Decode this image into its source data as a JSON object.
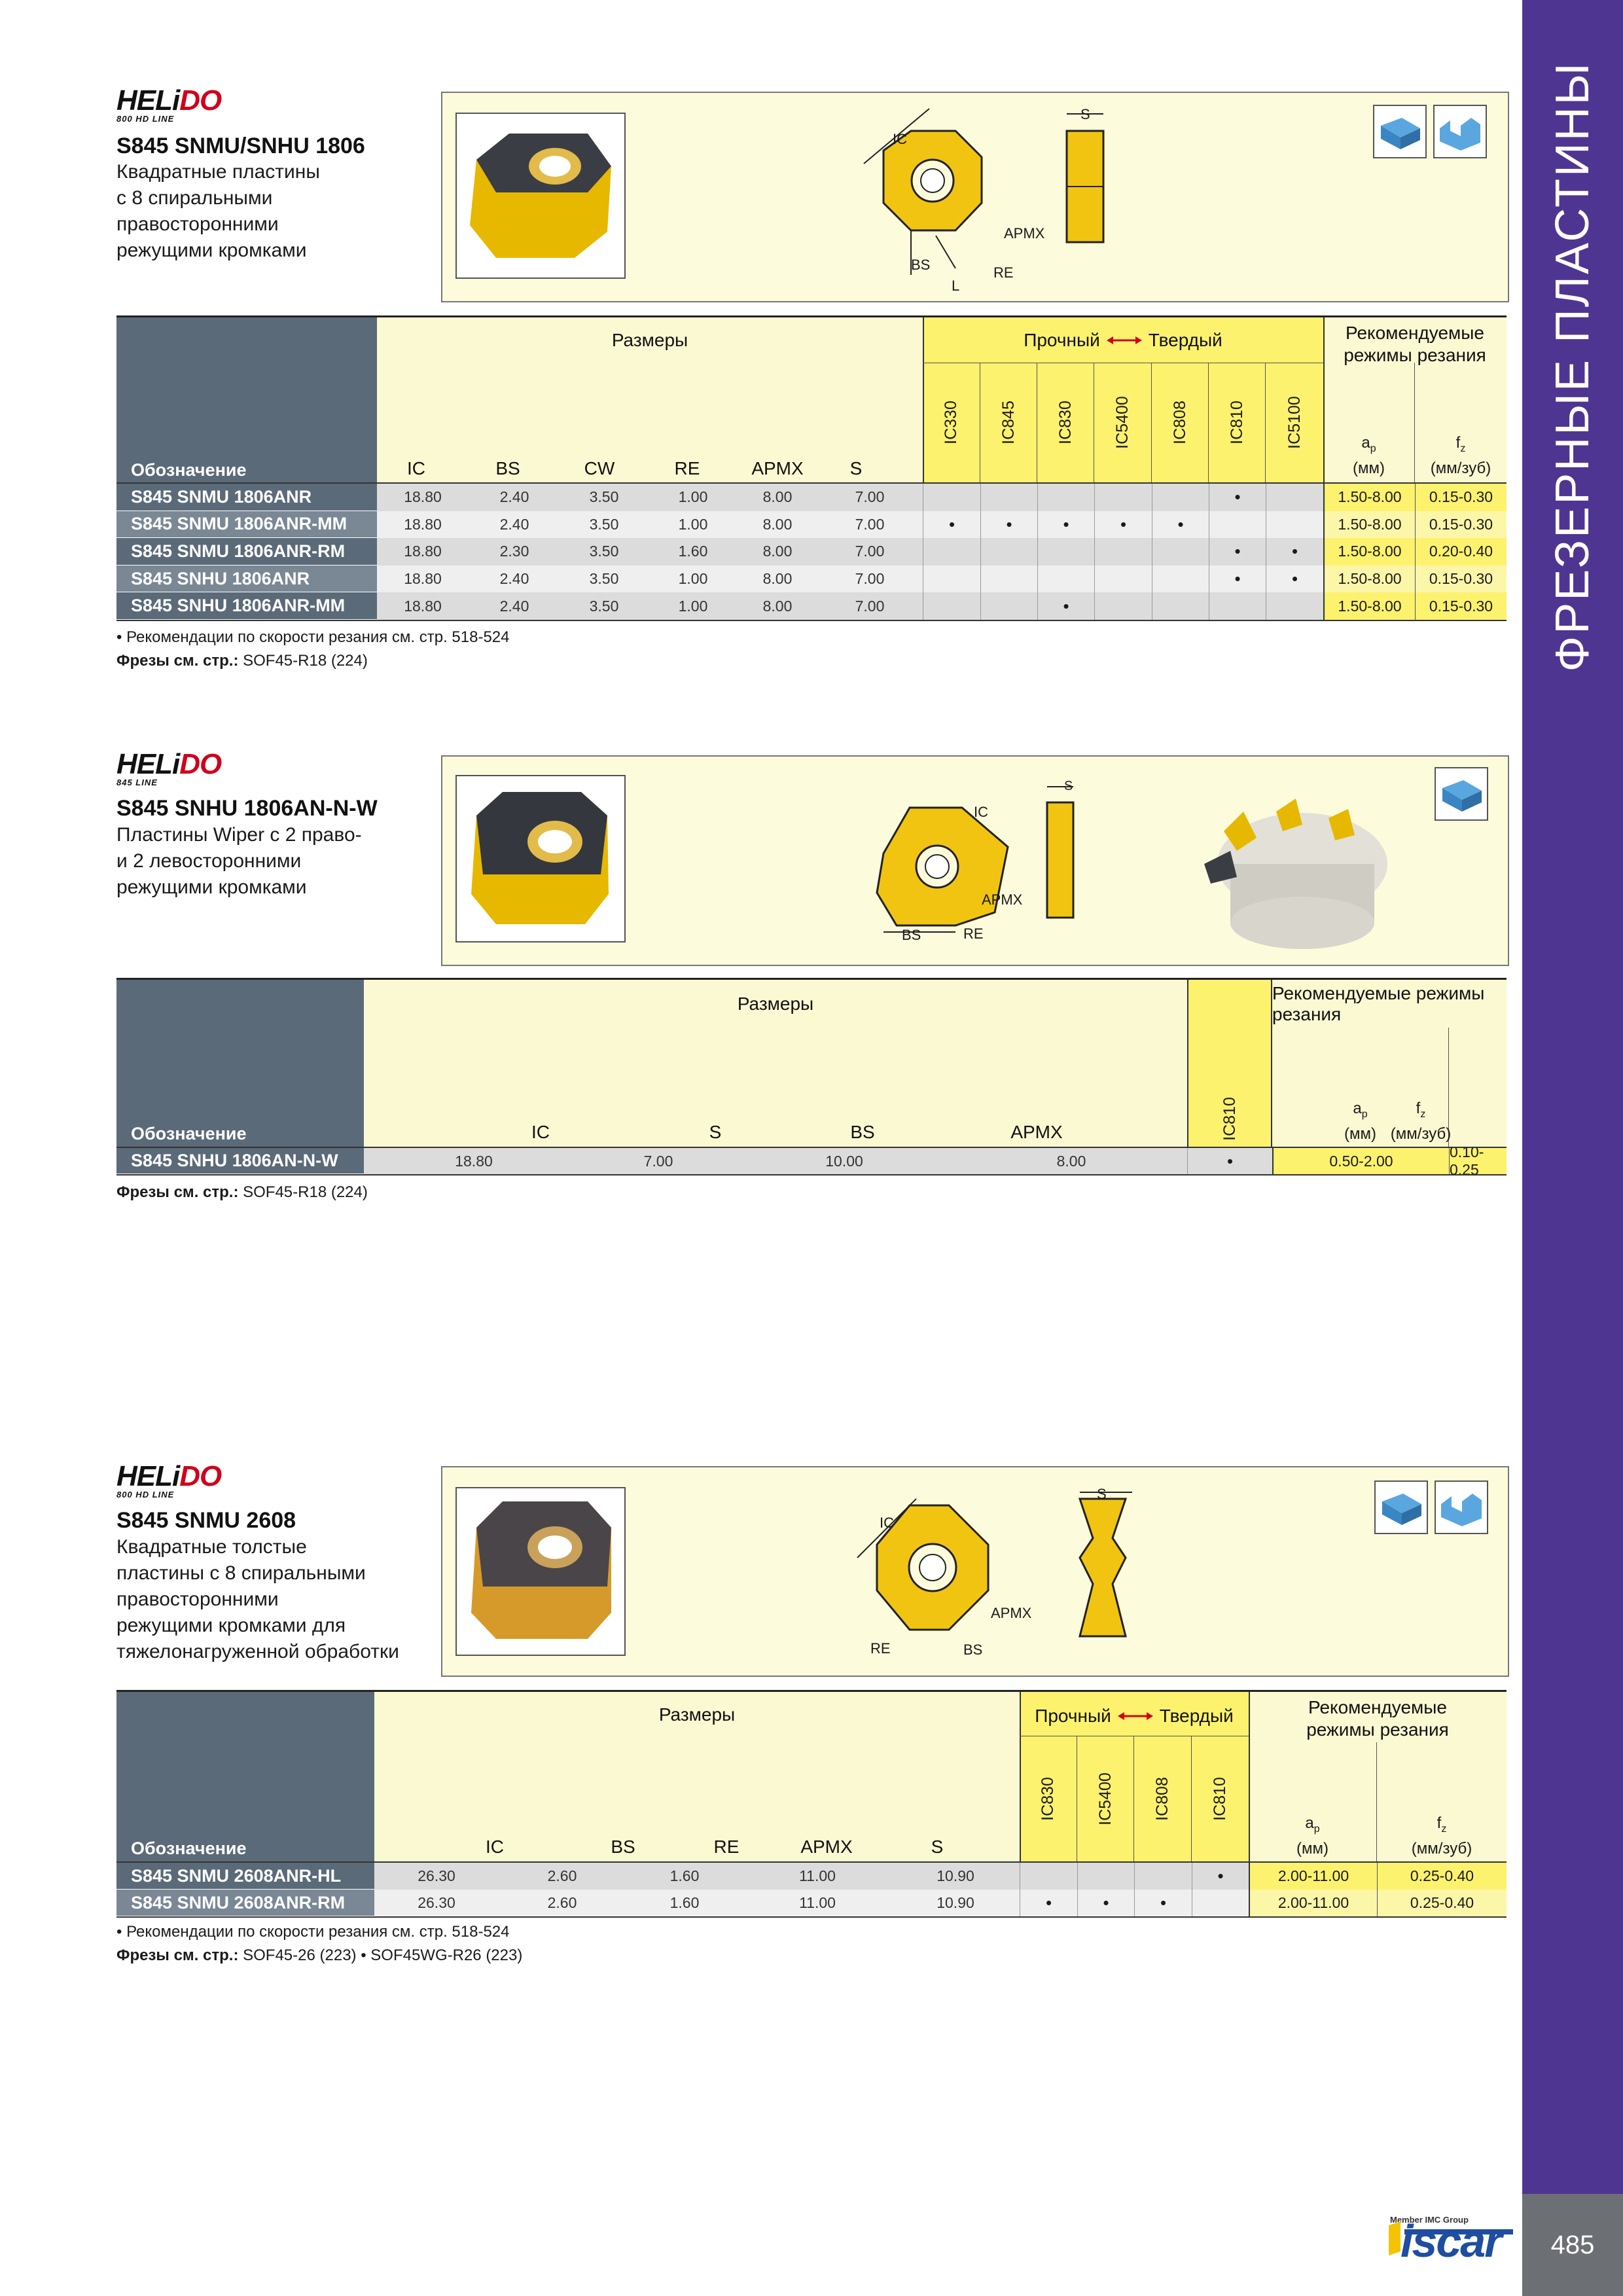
{
  "sidebar": {
    "title": "ФРЕЗЕРНЫЕ ПЛАСТИНЫ",
    "page_number": "485"
  },
  "brand": {
    "iscar": "iscar",
    "member": "Member IMC Group"
  },
  "logos": {
    "helido_black": "HELi",
    "helido_red": "DO",
    "sub_800": "800 HD LINE",
    "sub_845": "845 LINE"
  },
  "colors": {
    "sidebar": "#4f3592",
    "header_dark": "#5b6a78",
    "header_light": "#fbf9d2",
    "header_yellow": "#fdf26d",
    "insert_yellow": "#f2c412"
  },
  "section1": {
    "title": "S845 SNMU/SNHU 1806",
    "desc": [
      "Квадратные пластины",
      "с 8 спиральными",
      "правосторонними",
      "режущими кромками"
    ],
    "diagram_labels": {
      "ic": "IC",
      "s": "S",
      "apmx": "APMX",
      "bs": "BS",
      "re": "RE",
      "l": "L"
    },
    "header": {
      "designation": "Обозначение",
      "sizes": "Размеры",
      "strong": "Прочный",
      "hard": "Твердый",
      "recommended": [
        "Рекомендуемые",
        "режимы резания"
      ]
    },
    "dim_cols": [
      "IC",
      "BS",
      "CW",
      "RE",
      "APMX",
      "S"
    ],
    "grade_cols": [
      "IC330",
      "IC845",
      "IC830",
      "IC5400",
      "IC808",
      "IC810",
      "IC5100"
    ],
    "ap": [
      "a",
      "p",
      "(мм)"
    ],
    "fz": [
      "f",
      "z",
      "(мм/зуб)"
    ],
    "rows": [
      {
        "name": "S845 SNMU 1806ANR",
        "dims": [
          "18.80",
          "2.40",
          "3.50",
          "1.00",
          "8.00",
          "7.00"
        ],
        "grades": [
          "",
          "",
          "",
          "",
          "",
          "•",
          ""
        ],
        "ap": "1.50-8.00",
        "fz": "0.15-0.30"
      },
      {
        "name": "S845 SNMU 1806ANR-MM",
        "dims": [
          "18.80",
          "2.40",
          "3.50",
          "1.00",
          "8.00",
          "7.00"
        ],
        "grades": [
          "•",
          "•",
          "•",
          "•",
          "•",
          "",
          ""
        ],
        "ap": "1.50-8.00",
        "fz": "0.15-0.30"
      },
      {
        "name": "S845 SNMU 1806ANR-RM",
        "dims": [
          "18.80",
          "2.30",
          "3.50",
          "1.60",
          "8.00",
          "7.00"
        ],
        "grades": [
          "",
          "",
          "",
          "",
          "",
          "•",
          "•"
        ],
        "ap": "1.50-8.00",
        "fz": "0.20-0.40"
      },
      {
        "name": "S845 SNHU 1806ANR",
        "dims": [
          "18.80",
          "2.40",
          "3.50",
          "1.00",
          "8.00",
          "7.00"
        ],
        "grades": [
          "",
          "",
          "",
          "",
          "",
          "•",
          "•"
        ],
        "ap": "1.50-8.00",
        "fz": "0.15-0.30"
      },
      {
        "name": "S845 SNHU 1806ANR-MM",
        "dims": [
          "18.80",
          "2.40",
          "3.50",
          "1.00",
          "8.00",
          "7.00"
        ],
        "grades": [
          "",
          "",
          "•",
          "",
          "",
          "",
          ""
        ],
        "ap": "1.50-8.00",
        "fz": "0.15-0.30"
      }
    ],
    "note1": "• Рекомендации по скорости резания см. стр. 518-524",
    "note2_label": "Фрезы см. стр.:",
    "note2_value": " SOF45-R18 (224)"
  },
  "section2": {
    "title": "S845 SNHU 1806AN-N-W",
    "desc": [
      "Пластины Wiper с 2 право-",
      "и 2 левосторонними",
      "режущими кромками"
    ],
    "diagram_labels": {
      "ic": "IC",
      "s": "S",
      "apmx": "APMX",
      "bs": "BS",
      "re": "RE"
    },
    "header": {
      "designation": "Обозначение",
      "sizes": "Размеры",
      "recommended": "Рекомендуемые режимы резания"
    },
    "dim_cols": [
      "IC",
      "S",
      "BS",
      "APMX"
    ],
    "grade_cols": [
      "IC810"
    ],
    "ap": [
      "a",
      "p",
      "(мм)"
    ],
    "fz": [
      "f",
      "z",
      "(мм/зуб)"
    ],
    "rows": [
      {
        "name": "S845 SNHU 1806AN-N-W",
        "dims": [
          "18.80",
          "7.00",
          "10.00",
          "8.00"
        ],
        "grades": [
          "•"
        ],
        "ap": "0.50-2.00",
        "fz": "0.10-0.25"
      }
    ],
    "note2_label": "Фрезы см. стр.:",
    "note2_value": " SOF45-R18 (224)"
  },
  "section3": {
    "title": "S845 SNMU 2608",
    "desc": [
      "Квадратные толстые",
      "пластины с 8 спиральными",
      "правосторонними",
      "режущими кромками для",
      "тяжелонагруженной обработки"
    ],
    "diagram_labels": {
      "ic": "IC",
      "s": "S",
      "apmx": "APMX",
      "bs": "BS",
      "re": "RE"
    },
    "header": {
      "designation": "Обозначение",
      "sizes": "Размеры",
      "strong": "Прочный",
      "hard": "Твердый",
      "recommended": [
        "Рекомендуемые",
        "режимы резания"
      ]
    },
    "dim_cols": [
      "IC",
      "BS",
      "RE",
      "APMX",
      "S"
    ],
    "grade_cols": [
      "IC830",
      "IC5400",
      "IC808",
      "IC810"
    ],
    "ap": [
      "a",
      "p",
      "(мм)"
    ],
    "fz": [
      "f",
      "z",
      "(мм/зуб)"
    ],
    "rows": [
      {
        "name": "S845 SNMU 2608ANR-HL",
        "dims": [
          "26.30",
          "2.60",
          "1.60",
          "11.00",
          "10.90"
        ],
        "grades": [
          "",
          "",
          "",
          "•"
        ],
        "ap": "2.00-11.00",
        "fz": "0.25-0.40"
      },
      {
        "name": "S845 SNMU 2608ANR-RM",
        "dims": [
          "26.30",
          "2.60",
          "1.60",
          "11.00",
          "10.90"
        ],
        "grades": [
          "•",
          "•",
          "•",
          ""
        ],
        "ap": "2.00-11.00",
        "fz": "0.25-0.40"
      }
    ],
    "note1": "• Рекомендации по скорости резания см. стр. 518-524",
    "note2_label": "Фрезы см. стр.:",
    "note2_value": " SOF45-26 (223)  •  SOF45WG-R26 (223)"
  }
}
